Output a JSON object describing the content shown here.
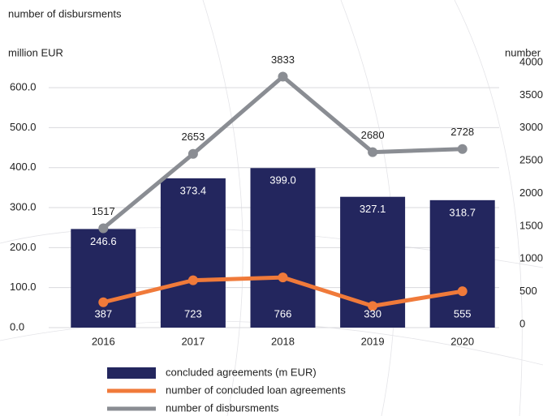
{
  "chart_data": {
    "type": "bar",
    "title": "number of disbursments",
    "y_label": "million EUR",
    "y2_label": "number",
    "categories": [
      "2016",
      "2017",
      "2018",
      "2019",
      "2020"
    ],
    "series": [
      {
        "name": "concluded agreements  (m EUR)",
        "type": "bar",
        "color": "#23265e",
        "values": [
          246.6,
          373.4,
          399.0,
          327.1,
          318.7
        ],
        "value_labels": [
          "246.6",
          "373.4",
          "399.0",
          "327.1",
          "318.7"
        ]
      },
      {
        "name": "number of concluded loan agreements",
        "type": "line",
        "axis": "y2",
        "color": "#f07a3a",
        "values": [
          387,
          723,
          766,
          330,
          555
        ]
      },
      {
        "name": "number of disbursments",
        "type": "line",
        "axis": "y2",
        "color": "#8a8d93",
        "values": [
          1517,
          2653,
          3833,
          2680,
          2728
        ]
      }
    ],
    "ylim": [
      0,
      655
    ],
    "yticks": [
      {
        "value": 0,
        "label": "0.0"
      },
      {
        "value": 100,
        "label": "100.0"
      },
      {
        "value": 200,
        "label": "200.0"
      },
      {
        "value": 300,
        "label": "300.0"
      },
      {
        "value": 400,
        "label": "400.0"
      },
      {
        "value": 500,
        "label": "500.0"
      },
      {
        "value": 600,
        "label": "600.0"
      }
    ],
    "y2lim": [
      0,
      4000
    ],
    "y2ticks": [
      0,
      500,
      1000,
      1500,
      2000,
      2500,
      3000,
      3500,
      4000
    ],
    "grid": true
  }
}
